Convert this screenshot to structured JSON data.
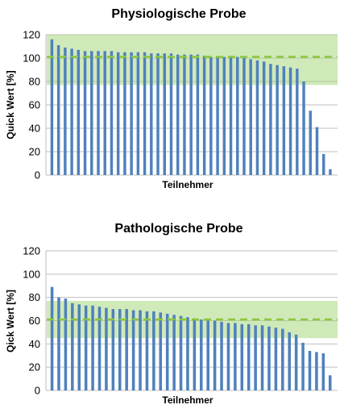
{
  "colors": {
    "bar": "#4f81bd",
    "band": "#a9d77f",
    "band_opacity": 0.55,
    "reference_line": "#8dc63f",
    "grid": "#bfbfbf"
  },
  "chart_data": [
    {
      "type": "bar",
      "title": "Physiologische Probe",
      "xlabel": "Teilnehmer",
      "ylabel": "Quick Wert [%]",
      "ylim": [
        0,
        120
      ],
      "yticks": [
        0,
        20,
        40,
        60,
        80,
        100,
        120
      ],
      "grid": true,
      "target_range": [
        77,
        120
      ],
      "reference_value": 101,
      "values": [
        116,
        111,
        109,
        108,
        107,
        106,
        106,
        106,
        106,
        106,
        105,
        105,
        105,
        105,
        105,
        104,
        104,
        104,
        104,
        103,
        103,
        103,
        103,
        102,
        101,
        101,
        101,
        101,
        101,
        100,
        99,
        98,
        97,
        95,
        94,
        93,
        92,
        91,
        80,
        55,
        41,
        18,
        5
      ]
    },
    {
      "type": "bar",
      "title": "Pathologische Probe",
      "xlabel": "Teilnehmer",
      "ylabel": "Qick Wert [%]",
      "ylim": [
        0,
        120
      ],
      "yticks": [
        0,
        20,
        40,
        60,
        80,
        100,
        120
      ],
      "grid": true,
      "target_range": [
        45,
        77
      ],
      "reference_value": 61,
      "values": [
        89,
        80,
        79,
        75,
        74,
        73,
        73,
        72,
        71,
        70,
        70,
        70,
        69,
        69,
        68,
        68,
        67,
        66,
        65,
        64,
        63,
        62,
        61,
        60,
        60,
        59,
        58,
        58,
        57,
        57,
        56,
        56,
        55,
        54,
        53,
        50,
        48,
        41,
        34,
        33,
        32,
        13
      ]
    }
  ]
}
